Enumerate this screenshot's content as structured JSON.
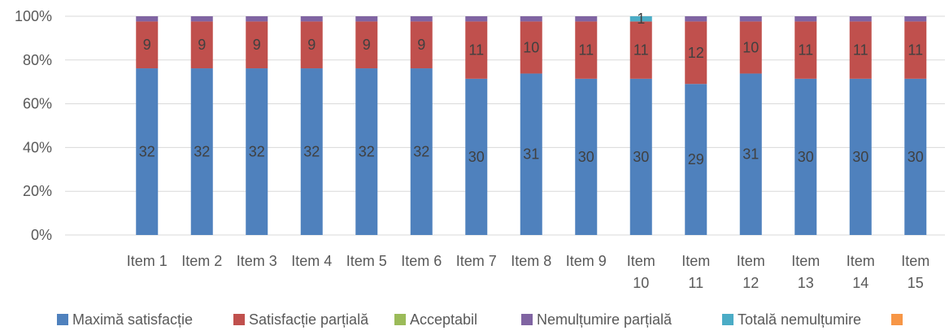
{
  "chart_data": {
    "type": "bar",
    "stacked": "percent",
    "categories": [
      "Item 1",
      "Item 2",
      "Item 3",
      "Item 4",
      "Item 5",
      "Item 6",
      "Item 7",
      "Item 8",
      "Item 9",
      "Item 10",
      "Item 11",
      "Item 12",
      "Item 13",
      "Item 14",
      "Item 15"
    ],
    "series": [
      {
        "name": "Maximă satisfacție",
        "color": "#4f81bd",
        "values": [
          32,
          32,
          32,
          32,
          32,
          32,
          30,
          31,
          30,
          30,
          29,
          31,
          30,
          30,
          30
        ],
        "labels": true
      },
      {
        "name": "Satisfacție parțială",
        "color": "#c0504d",
        "values": [
          9,
          9,
          9,
          9,
          9,
          9,
          11,
          10,
          11,
          11,
          12,
          10,
          11,
          11,
          11
        ],
        "labels": true
      },
      {
        "name": "Acceptabil",
        "color": "#9bbb59",
        "values": [
          0,
          0,
          0,
          0,
          0,
          0,
          0,
          0,
          0,
          0,
          0,
          0,
          0,
          0,
          0
        ],
        "labels": false
      },
      {
        "name": "Nemulțumire parțială",
        "color": "#8064a2",
        "values": [
          1,
          1,
          1,
          1,
          1,
          1,
          1,
          1,
          1,
          0,
          1,
          1,
          1,
          1,
          1
        ],
        "labels": false
      },
      {
        "name": "Totală nemulțumire",
        "color": "#4bacc6",
        "values": [
          0,
          0,
          0,
          0,
          0,
          0,
          0,
          0,
          0,
          1,
          0,
          0,
          0,
          0,
          0
        ],
        "labels": true
      },
      {
        "name": "",
        "color": "#f79646",
        "values": [
          0,
          0,
          0,
          0,
          0,
          0,
          0,
          0,
          0,
          0,
          0,
          0,
          0,
          0,
          0
        ],
        "labels": false
      }
    ],
    "y_ticks": [
      "0%",
      "20%",
      "40%",
      "60%",
      "80%",
      "100%"
    ],
    "ylim": [
      0,
      100
    ],
    "grid": true,
    "legend": "bottom"
  }
}
